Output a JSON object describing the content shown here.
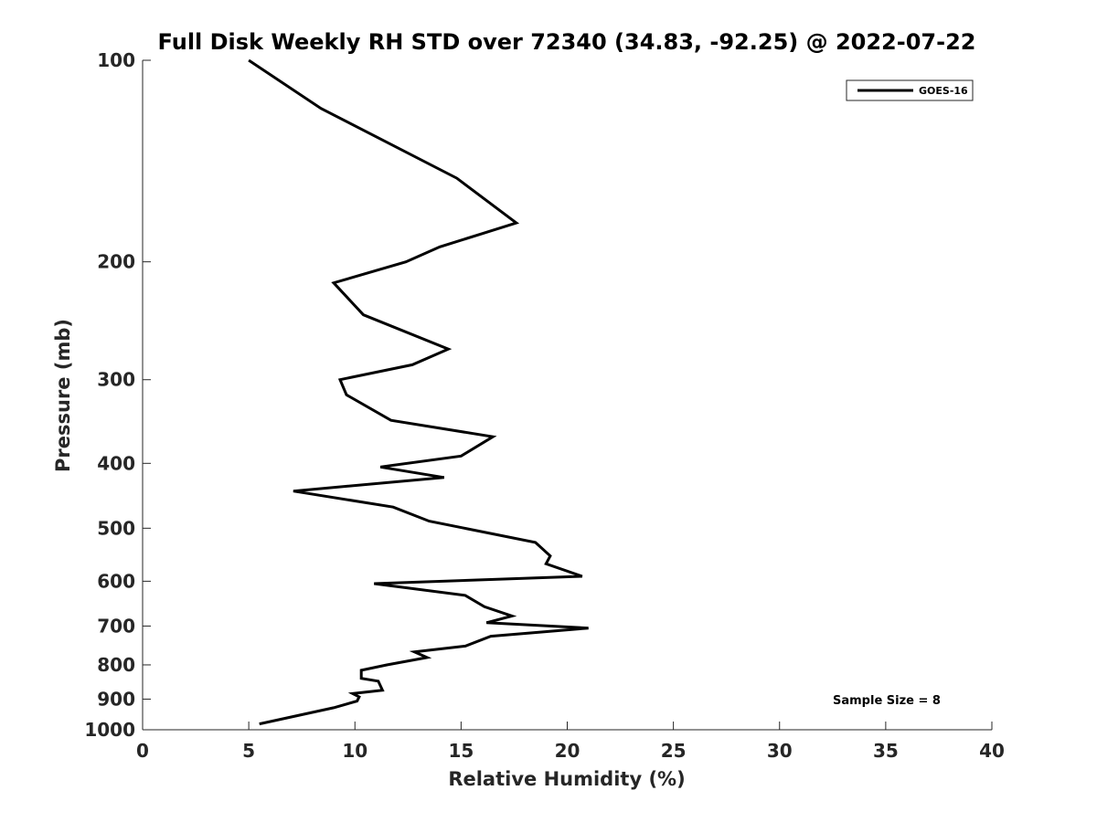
{
  "chart_data": {
    "type": "line",
    "title": "Full Disk Weekly RH STD over 72340 (34.83, -92.25) @ 2022-07-22",
    "xlabel": "Relative Humidity (%)",
    "ylabel": "Pressure (mb)",
    "xlim": [
      0,
      40
    ],
    "ylim": [
      100,
      1000
    ],
    "yscale": "log",
    "y_reversed": true,
    "x_ticks": [
      0,
      5,
      10,
      15,
      20,
      25,
      30,
      35,
      40
    ],
    "y_ticks": [
      100,
      200,
      300,
      400,
      500,
      600,
      700,
      800,
      900,
      1000
    ],
    "grid": false,
    "legend": {
      "position": "top-right",
      "entries": [
        "GOES-16"
      ]
    },
    "annotation": "Sample Size = 8",
    "series": [
      {
        "name": "GOES-16",
        "color": "#000000",
        "x": [
          5.0,
          8.4,
          14.8,
          17.6,
          14.0,
          12.4,
          9.0,
          10.4,
          14.4,
          12.7,
          9.3,
          9.6,
          11.7,
          16.5,
          15.0,
          11.2,
          14.2,
          7.1,
          11.8,
          13.5,
          18.5,
          19.2,
          19.0,
          20.7,
          10.9,
          15.2,
          16.1,
          17.4,
          16.2,
          21.0,
          16.4,
          15.2,
          12.8,
          13.4,
          11.5,
          10.3,
          10.3,
          11.1,
          11.3,
          9.9,
          10.2,
          10.1,
          9.0,
          5.5
        ],
        "y": [
          100,
          118,
          150,
          175,
          190,
          200,
          215,
          240,
          270,
          285,
          300,
          316,
          345,
          365,
          390,
          405,
          420,
          440,
          465,
          488,
          525,
          550,
          565,
          590,
          605,
          630,
          655,
          676,
          692,
          705,
          725,
          750,
          765,
          780,
          800,
          815,
          838,
          846,
          873,
          883,
          893,
          906,
          927,
          980
        ]
      }
    ]
  }
}
